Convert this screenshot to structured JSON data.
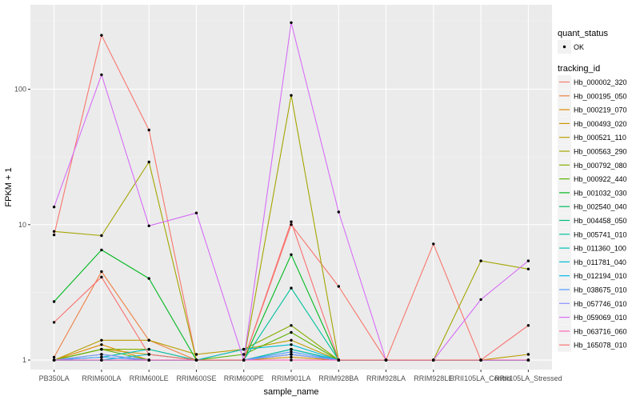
{
  "chart_data": {
    "type": "line",
    "title": "",
    "xlabel": "sample_name",
    "ylabel": "FPKM + 1",
    "y_scale": "log10",
    "ylim": [
      0.85,
      420
    ],
    "y_ticks": [
      1,
      10,
      100
    ],
    "y_tick_labels": [
      "1",
      "10",
      "100"
    ],
    "categories": [
      "PB350LA",
      "RRIM600LA",
      "RRIM600LE",
      "RRIM600SE",
      "RRIM600PE",
      "RRIM901LA",
      "RRIM928BA",
      "RRIM928LA",
      "RRIM928LE",
      "RRII105LA_Control",
      "RRII105LA_Stressed"
    ],
    "legend_shape": {
      "title": "quant_status",
      "entries": [
        "OK"
      ]
    },
    "legend_color": {
      "title": "tracking_id"
    },
    "series": [
      {
        "name": "Hb_000002_320",
        "color": "#F8766D",
        "values": [
          8.4,
          250,
          50,
          1,
          1,
          10,
          3.5,
          1,
          7.2,
          1,
          1
        ]
      },
      {
        "name": "Hb_000195_050",
        "color": "#EE8043",
        "values": [
          1.05,
          4.5,
          1.4,
          1,
          1,
          1.2,
          1,
          1,
          1,
          1,
          1
        ]
      },
      {
        "name": "Hb_000219_070",
        "color": "#E08B00",
        "values": [
          1,
          1.3,
          1,
          1,
          1,
          1.1,
          1,
          1,
          1,
          1,
          1
        ]
      },
      {
        "name": "Hb_000493_020",
        "color": "#CF9400",
        "values": [
          1,
          1.2,
          1.1,
          1,
          1,
          1.05,
          1,
          1,
          1,
          1,
          1
        ]
      },
      {
        "name": "Hb_000521_110",
        "color": "#BB9D00",
        "values": [
          1,
          1.4,
          1.4,
          1.1,
          1.2,
          1.4,
          1,
          1,
          1,
          1,
          1.1
        ]
      },
      {
        "name": "Hb_000563_290",
        "color": "#A3A500",
        "values": [
          8.9,
          8.3,
          29,
          1,
          1,
          90,
          1,
          1,
          1,
          5.4,
          4.7
        ]
      },
      {
        "name": "Hb_000792_080",
        "color": "#85AD00",
        "values": [
          1,
          1.2,
          1.2,
          1,
          1.2,
          1.8,
          1,
          1,
          1,
          1,
          1
        ]
      },
      {
        "name": "Hb_000922_440",
        "color": "#5BB300",
        "values": [
          1,
          1.2,
          1,
          1,
          1.1,
          1.6,
          1,
          1,
          1,
          1,
          1
        ]
      },
      {
        "name": "Hb_001032_030",
        "color": "#00B81F",
        "values": [
          2.7,
          6.5,
          4,
          1,
          1,
          6,
          1,
          1,
          1,
          1,
          1
        ]
      },
      {
        "name": "Hb_002540_040",
        "color": "#00BC59",
        "values": [
          1,
          1.1,
          1,
          1,
          1,
          1.2,
          1,
          1,
          1,
          1,
          1
        ]
      },
      {
        "name": "Hb_004458_050",
        "color": "#00BF7D",
        "values": [
          1,
          1,
          1,
          1,
          1,
          1.1,
          1,
          1,
          1,
          1,
          1
        ]
      },
      {
        "name": "Hb_005741_010",
        "color": "#00C19C",
        "values": [
          1,
          1,
          1,
          1,
          1,
          3.4,
          1,
          1,
          1,
          1,
          1
        ]
      },
      {
        "name": "Hb_011360_100",
        "color": "#00C0B8",
        "values": [
          1,
          1.05,
          1.2,
          1,
          1,
          1.2,
          1,
          1,
          1,
          1,
          1
        ]
      },
      {
        "name": "Hb_011781_040",
        "color": "#00BCD3",
        "values": [
          1,
          1,
          1.1,
          1,
          1.2,
          1.3,
          1,
          1,
          1,
          1,
          1
        ]
      },
      {
        "name": "Hb_012194_010",
        "color": "#00B5EB",
        "values": [
          1,
          1,
          1,
          1,
          1,
          1.1,
          1,
          1,
          1,
          1,
          1
        ]
      },
      {
        "name": "Hb_038675_010",
        "color": "#4F9DFF",
        "values": [
          1,
          1.05,
          1,
          1,
          1,
          1.15,
          1,
          1,
          1,
          1,
          1
        ]
      },
      {
        "name": "Hb_057746_010",
        "color": "#8B93FF",
        "values": [
          1,
          1.1,
          1,
          1,
          1,
          1.1,
          1,
          1,
          1,
          1,
          1
        ]
      },
      {
        "name": "Hb_059069_010",
        "color": "#D66EF6",
        "values": [
          13.5,
          128,
          9.8,
          12.2,
          1,
          310,
          12.4,
          1,
          1,
          2.8,
          5.4
        ]
      },
      {
        "name": "Hb_063716_060",
        "color": "#FF63B6",
        "values": [
          1,
          1,
          1,
          1,
          1,
          1,
          1,
          1,
          1,
          1,
          1
        ]
      },
      {
        "name": "Hb_165078_010",
        "color": "#F9706F",
        "values": [
          1.9,
          4.1,
          1.1,
          1,
          1,
          10.5,
          1,
          1,
          1,
          1,
          1.8
        ]
      }
    ]
  }
}
